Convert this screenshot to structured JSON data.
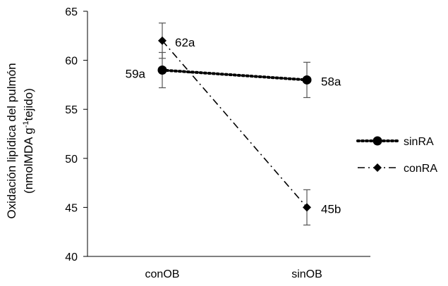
{
  "chart_data": {
    "type": "line",
    "categories": [
      "conOB",
      "sinOB"
    ],
    "ylabel_line1": "Oxidación lipídica del pulmón",
    "ylabel_line2_pre": "(nmolMDA g",
    "ylabel_line2_sup": "-1",
    "ylabel_line2_post": "tejido)",
    "ylim": [
      40,
      65
    ],
    "yticks": [
      40,
      45,
      50,
      55,
      60,
      65
    ],
    "grid": false,
    "legend_position": "right",
    "series": [
      {
        "name": "sinRA",
        "values": [
          59,
          58
        ],
        "errors": [
          1.8,
          1.8
        ],
        "labels": [
          "59a",
          "58a"
        ],
        "marker": "circle",
        "line_style": "dotted",
        "color": "#000000"
      },
      {
        "name": "conRA",
        "values": [
          62,
          45
        ],
        "errors": [
          1.8,
          1.8
        ],
        "labels": [
          "62a",
          "45b"
        ],
        "marker": "diamond",
        "line_style": "dash-dot",
        "color": "#000000"
      }
    ]
  }
}
